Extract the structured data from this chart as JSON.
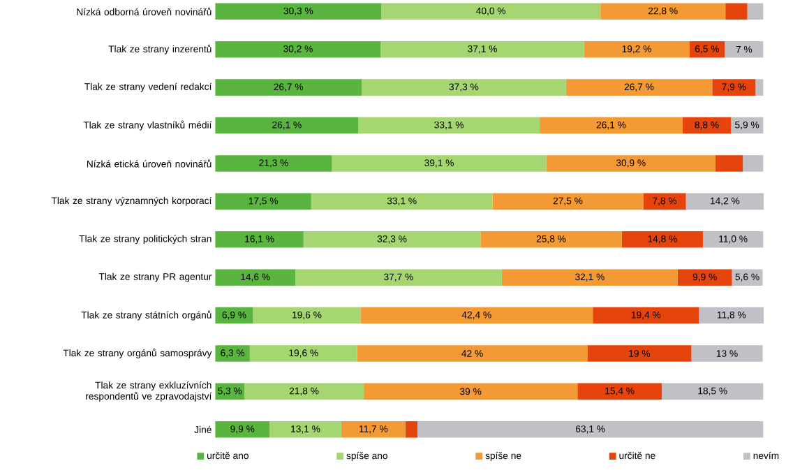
{
  "chart_data": {
    "type": "bar",
    "orientation": "horizontal",
    "stacked": true,
    "legend": "bottom",
    "tick_labels": "y",
    "categories": [
      "Nízká odborná úroveň novinářů",
      "Tlak ze strany inzerentů",
      "Tlak ze strany vedení redakcí",
      "Tlak ze strany vlastníků médií",
      "Nízká etická úroveň novinářů",
      "Tlak ze strany významných korporací",
      "Tlak ze strany politických stran",
      "Tlak ze strany PR agentur",
      "Tlak ze strany státních orgánů",
      "Tlak ze strany orgánů samosprávy",
      "Tlak ze strany exkluzívních respondentů ve zpravodajství",
      "Jiné"
    ],
    "series": [
      {
        "name": "určitě ano",
        "color": "#5ab540",
        "values": [
          30.3,
          30.2,
          26.7,
          26.1,
          21.3,
          17.5,
          16.1,
          14.6,
          6.9,
          6.3,
          5.3,
          9.9
        ],
        "value_labels": [
          "30,3 %",
          "30,2 %",
          "26,7 %",
          "26,1 %",
          "21,3 %",
          "17,5 %",
          "16,1 %",
          "14,6 %",
          "6,9 %",
          "6,3 %",
          "5,3 %",
          "9,9 %"
        ]
      },
      {
        "name": "spíše ano",
        "color": "#a6d672",
        "values": [
          40.0,
          37.1,
          37.3,
          33.1,
          39.1,
          33.1,
          32.3,
          37.7,
          19.6,
          19.6,
          21.8,
          13.1
        ],
        "value_labels": [
          "40,0 %",
          "37,1 %",
          "37,3 %",
          "33,1 %",
          "39,1 %",
          "33,1 %",
          "32,3 %",
          "37,7 %",
          "19,6 %",
          "19,6 %",
          "21,8 %",
          "13,1 %"
        ]
      },
      {
        "name": "spíše ne",
        "color": "#f39a34",
        "values": [
          22.8,
          19.2,
          26.7,
          26.1,
          30.9,
          27.5,
          25.8,
          32.1,
          42.4,
          42,
          39,
          11.7
        ],
        "value_labels": [
          "22,8 %",
          "19,2 %",
          "26,7 %",
          "26,1 %",
          "30,9 %",
          "27,5 %",
          "25,8 %",
          "32,1 %",
          "42,4 %",
          "42 %",
          "39 %",
          "11,7 %"
        ]
      },
      {
        "name": "určitě ne",
        "color": "#e5450c",
        "values": [
          4,
          6.5,
          7.9,
          8.8,
          5,
          7.8,
          14.8,
          9.9,
          19.4,
          19,
          15.4,
          2.2
        ],
        "value_labels": [
          null,
          "6,5 %",
          "7,9 %",
          "8,8 %",
          null,
          "7,8 %",
          "14,8 %",
          "9,9 %",
          "19,4 %",
          "19 %",
          "15,4 %",
          null
        ]
      },
      {
        "name": "nevím",
        "color": "#bfc1c7",
        "values": [
          2.9,
          7,
          1.4,
          5.9,
          3.7,
          14.2,
          11.0,
          5.6,
          11.8,
          13,
          18.5,
          63.1
        ],
        "value_labels": [
          null,
          "7 %",
          null,
          "5,9 %",
          null,
          "14,2 %",
          "11,0 %",
          "5,6 %",
          "11,8 %",
          "13 %",
          "18,5 %",
          "63,1 %"
        ]
      }
    ]
  }
}
